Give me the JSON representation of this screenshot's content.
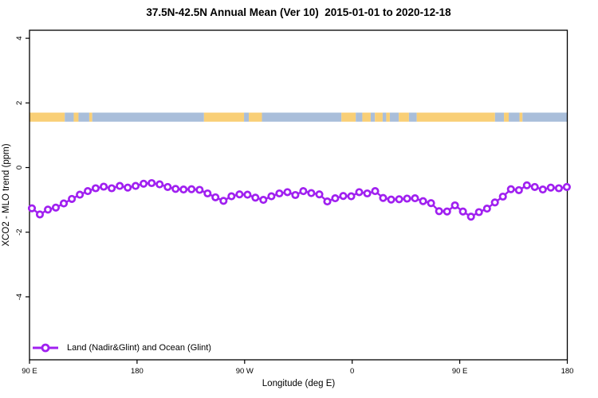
{
  "title": "37.5N-42.5N Annual Mean (Ver 10)  2015-01-01 to 2020-12-18",
  "legend": {
    "entries": [
      {
        "label": "Land (Nadir&Glint) and Ocean (Glint)",
        "color": "#A020F0",
        "marker": "open-circle"
      }
    ]
  },
  "colors": {
    "series": "#A020F0",
    "marker_fill": "#ffffff",
    "land": "#F9CF76",
    "ocean": "#A9BEDA",
    "axis": "#000000",
    "background": "#ffffff"
  },
  "chart_data": {
    "type": "line",
    "title": "37.5N-42.5N Annual Mean (Ver 10)  2015-01-01 to 2020-12-18",
    "xlabel": "Longitude (deg E)",
    "ylabel": "XCO2 - MLO trend (ppm)",
    "xlim": [
      90,
      540
    ],
    "ylim": [
      -5.95,
      4.25
    ],
    "grid": false,
    "legend_position": "bottom-left",
    "x_ticks": [
      {
        "value": 90,
        "label": "90 E"
      },
      {
        "value": 180,
        "label": "180"
      },
      {
        "value": 270,
        "label": "90 W"
      },
      {
        "value": 360,
        "label": "0"
      },
      {
        "value": 450,
        "label": "90 E"
      },
      {
        "value": 540,
        "label": "180"
      }
    ],
    "y_ticks": [
      {
        "value": 4,
        "label": "4"
      },
      {
        "value": 2,
        "label": "2"
      },
      {
        "value": 0,
        "label": "0"
      },
      {
        "value": -2,
        "label": "-2"
      },
      {
        "value": -4,
        "label": "-4"
      }
    ],
    "series": [
      {
        "name": "Land (Nadir&Glint) and Ocean (Glint)",
        "color": "#A020F0",
        "marker": "open-circle",
        "x": [
          92.0,
          98.7,
          105.4,
          112.0,
          118.7,
          125.4,
          132.1,
          138.8,
          145.4,
          152.1,
          158.8,
          165.5,
          172.2,
          178.8,
          185.5,
          192.2,
          198.9,
          205.6,
          212.2,
          218.9,
          225.6,
          232.3,
          239.0,
          245.6,
          252.3,
          259.0,
          265.7,
          272.4,
          279.0,
          285.7,
          292.4,
          299.1,
          305.8,
          312.4,
          319.1,
          325.8,
          332.5,
          339.2,
          345.8,
          352.5,
          359.2,
          365.9,
          372.6,
          379.2,
          385.9,
          392.6,
          399.3,
          406.0,
          412.6,
          419.3,
          426.0,
          432.7,
          439.4,
          446.0,
          452.7,
          459.4,
          466.1,
          472.8,
          479.4,
          486.1,
          492.8,
          499.5,
          506.2,
          512.8,
          519.5,
          526.2,
          532.9,
          539.6
        ],
        "y": [
          -1.26,
          -1.45,
          -1.3,
          -1.24,
          -1.11,
          -0.97,
          -0.84,
          -0.73,
          -0.64,
          -0.59,
          -0.64,
          -0.57,
          -0.62,
          -0.57,
          -0.5,
          -0.48,
          -0.52,
          -0.6,
          -0.66,
          -0.68,
          -0.67,
          -0.69,
          -0.8,
          -0.92,
          -1.03,
          -0.89,
          -0.83,
          -0.84,
          -0.93,
          -1.0,
          -0.89,
          -0.8,
          -0.76,
          -0.85,
          -0.73,
          -0.79,
          -0.83,
          -1.05,
          -0.95,
          -0.88,
          -0.89,
          -0.76,
          -0.8,
          -0.73,
          -0.94,
          -0.99,
          -0.98,
          -0.96,
          -0.95,
          -1.04,
          -1.1,
          -1.35,
          -1.36,
          -1.17,
          -1.36,
          -1.52,
          -1.38,
          -1.27,
          -1.08,
          -0.9,
          -0.67,
          -0.7,
          -0.55,
          -0.6,
          -0.68,
          -0.62,
          -0.64,
          -0.6
        ]
      }
    ],
    "map_band": {
      "description": "land/ocean strip along latitude band 37.5N-42.5N",
      "y_range": [
        1.42,
        1.7
      ],
      "land_color": "#F9CF76",
      "ocean_color": "#A9BEDA",
      "segments": [
        {
          "from": 90,
          "to": 119.5,
          "type": "land"
        },
        {
          "from": 119.5,
          "to": 127,
          "type": "ocean"
        },
        {
          "from": 127,
          "to": 131,
          "type": "land"
        },
        {
          "from": 131,
          "to": 140,
          "type": "ocean"
        },
        {
          "from": 140,
          "to": 142.5,
          "type": "land"
        },
        {
          "from": 142.5,
          "to": 236,
          "type": "ocean"
        },
        {
          "from": 236,
          "to": 269.5,
          "type": "land"
        },
        {
          "from": 269.5,
          "to": 273.5,
          "type": "ocean"
        },
        {
          "from": 273.5,
          "to": 284.5,
          "type": "land"
        },
        {
          "from": 284.5,
          "to": 351,
          "type": "ocean"
        },
        {
          "from": 351,
          "to": 363,
          "type": "land"
        },
        {
          "from": 363,
          "to": 368.5,
          "type": "ocean"
        },
        {
          "from": 368.5,
          "to": 375.5,
          "type": "land"
        },
        {
          "from": 375.5,
          "to": 379,
          "type": "ocean"
        },
        {
          "from": 379,
          "to": 385.5,
          "type": "land"
        },
        {
          "from": 385.5,
          "to": 388.5,
          "type": "ocean"
        },
        {
          "from": 388.5,
          "to": 391.5,
          "type": "land"
        },
        {
          "from": 391.5,
          "to": 399,
          "type": "ocean"
        },
        {
          "from": 399,
          "to": 407.5,
          "type": "land"
        },
        {
          "from": 407.5,
          "to": 414,
          "type": "ocean"
        },
        {
          "from": 414,
          "to": 479.5,
          "type": "land"
        },
        {
          "from": 479.5,
          "to": 487,
          "type": "ocean"
        },
        {
          "from": 487,
          "to": 491,
          "type": "land"
        },
        {
          "from": 491,
          "to": 500,
          "type": "ocean"
        },
        {
          "from": 500,
          "to": 502.5,
          "type": "land"
        },
        {
          "from": 502.5,
          "to": 540,
          "type": "ocean"
        }
      ]
    }
  }
}
